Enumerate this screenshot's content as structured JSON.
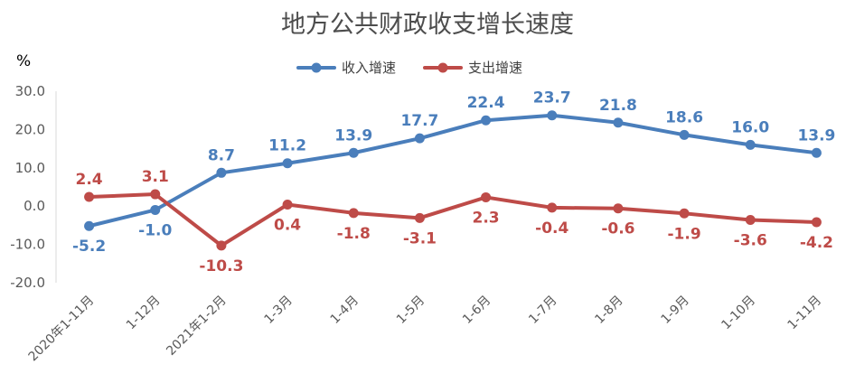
{
  "chart_data": {
    "type": "line",
    "title": "地方公共财政收支增长速度",
    "ylabel": "%",
    "xlabel": "",
    "ylim": [
      -20,
      30
    ],
    "yticks": [
      "30.0",
      "20.0",
      "10.0",
      "0.0",
      "-10.0",
      "-20.0"
    ],
    "grid": false,
    "legend_position": "top",
    "categories": [
      "2020年1-11月",
      "1-12月",
      "2021年1-2月",
      "1-3月",
      "1-4月",
      "1-5月",
      "1-6月",
      "1-7月",
      "1-8月",
      "1-9月",
      "1-10月",
      "1-11月"
    ],
    "series": [
      {
        "name": "收入增速",
        "color": "#4a7ebb",
        "values": [
          -5.2,
          -1.0,
          8.7,
          11.2,
          13.9,
          17.7,
          22.4,
          23.7,
          21.8,
          18.6,
          16.0,
          13.9
        ],
        "labels": [
          "-5.2",
          "-1.0",
          "8.7",
          "11.2",
          "13.9",
          "17.7",
          "22.4",
          "23.7",
          "21.8",
          "18.6",
          "16.0",
          "13.9"
        ]
      },
      {
        "name": "支出增速",
        "color": "#be4b48",
        "values": [
          2.4,
          3.1,
          -10.3,
          0.4,
          -1.8,
          -3.1,
          2.3,
          -0.4,
          -0.6,
          -1.9,
          -3.6,
          -4.2
        ],
        "labels": [
          "2.4",
          "3.1",
          "-10.3",
          "0.4",
          "-1.8",
          "-3.1",
          "2.3",
          "-0.4",
          "-0.6",
          "-1.9",
          "-3.6",
          "-4.2"
        ]
      }
    ]
  }
}
